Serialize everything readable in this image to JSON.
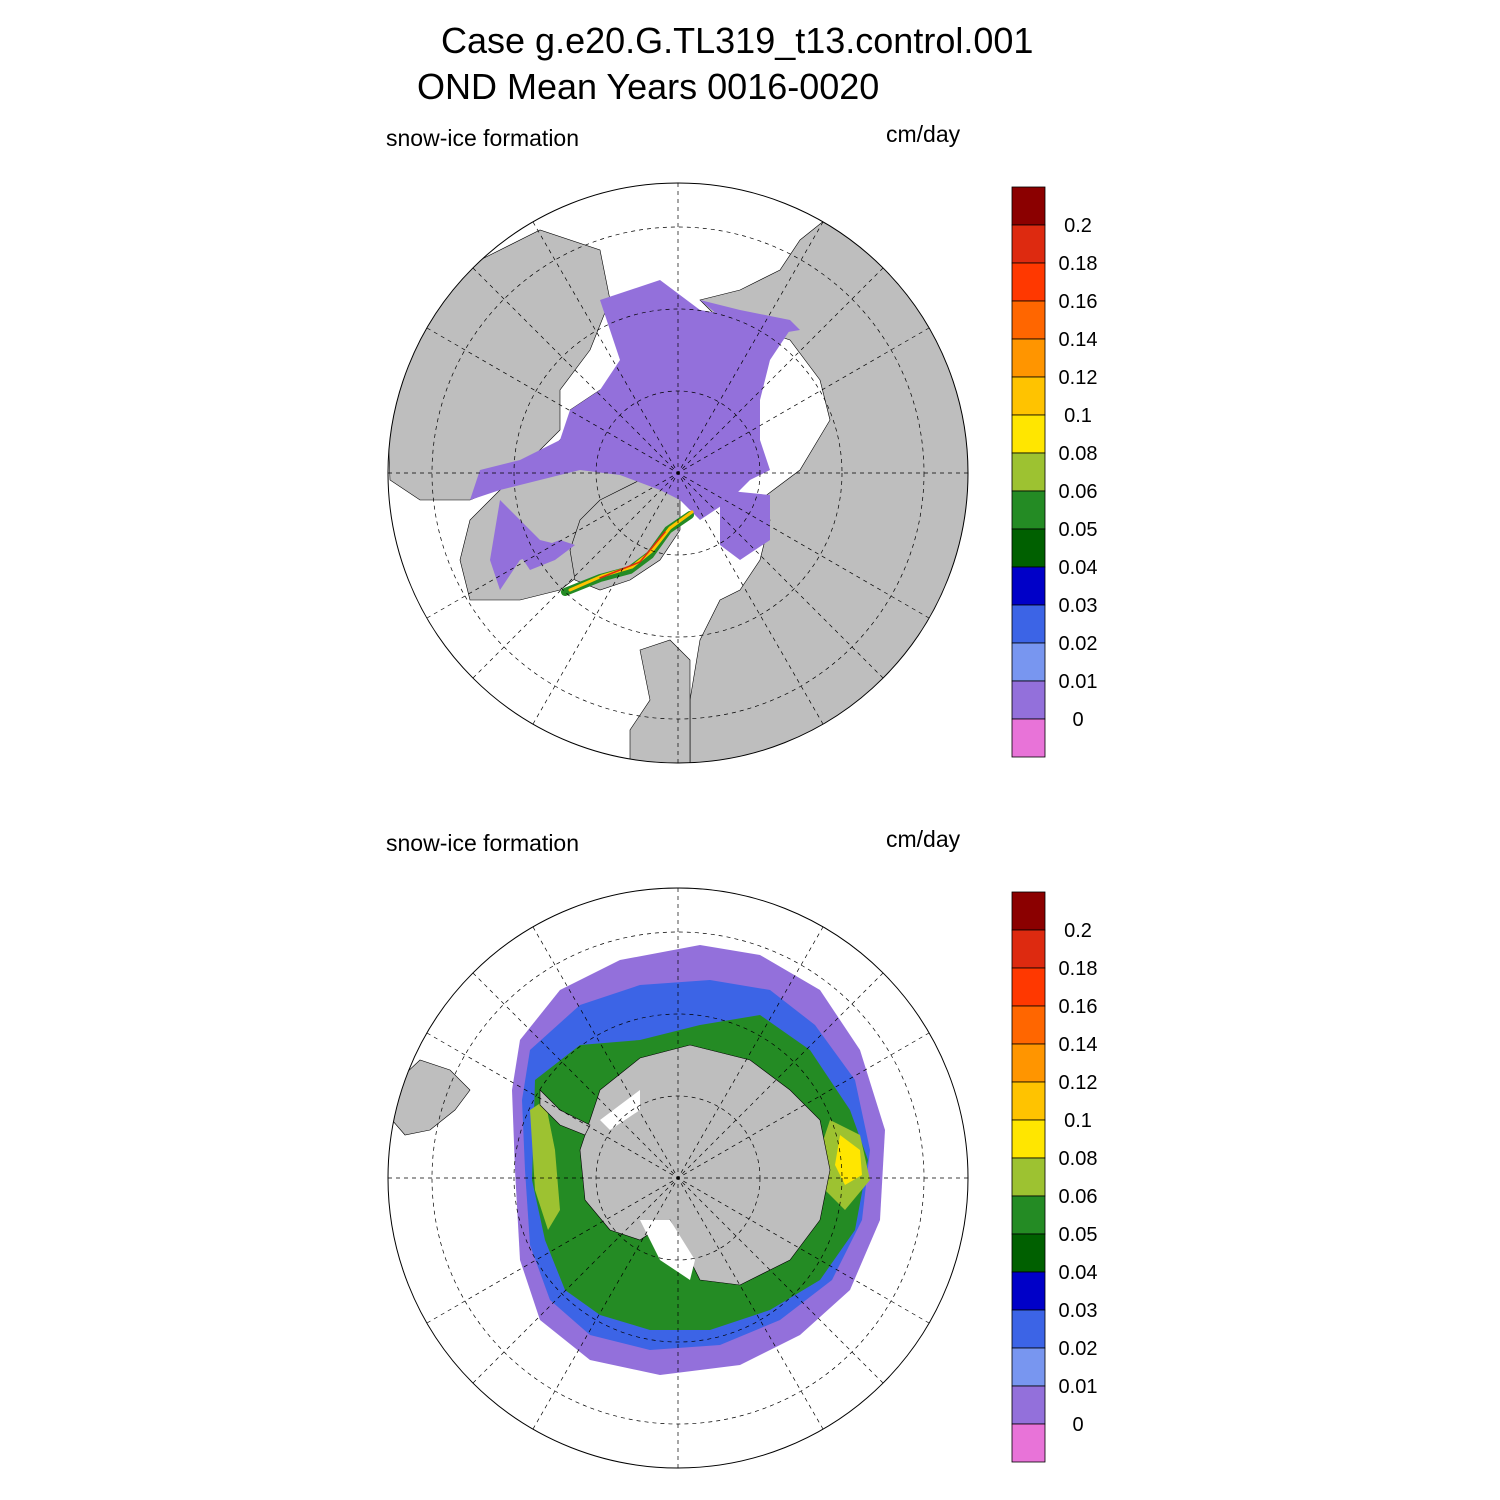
{
  "header": {
    "title_line1": "Case g.e20.G.TL319_t13.control.001",
    "title_line2": "OND Mean   Years 0016-0020"
  },
  "panels": [
    {
      "id": "north",
      "hemisphere": "Northern",
      "variable_label": "snow-ice formation",
      "units_label": "cm/day"
    },
    {
      "id": "south",
      "hemisphere": "Southern",
      "variable_label": "snow-ice formation",
      "units_label": "cm/day"
    }
  ],
  "colorbar": {
    "labels": [
      "0.2",
      "0.18",
      "0.16",
      "0.14",
      "0.12",
      "0.1",
      "0.08",
      "0.06",
      "0.05",
      "0.04",
      "0.03",
      "0.02",
      "0.01",
      "0"
    ],
    "colors_top_to_bottom": [
      "#8b0000",
      "#dd2a10",
      "#ff3800",
      "#ff6600",
      "#ff9500",
      "#ffc300",
      "#ffe600",
      "#9dc231",
      "#248b24",
      "#006000",
      "#0000c8",
      "#3c64e6",
      "#7896f0",
      "#9370db",
      "#e873d8"
    ]
  },
  "colors": {
    "land": "#bebebe",
    "ocean_no_data": "#ffffff",
    "grid": "#000000"
  }
}
